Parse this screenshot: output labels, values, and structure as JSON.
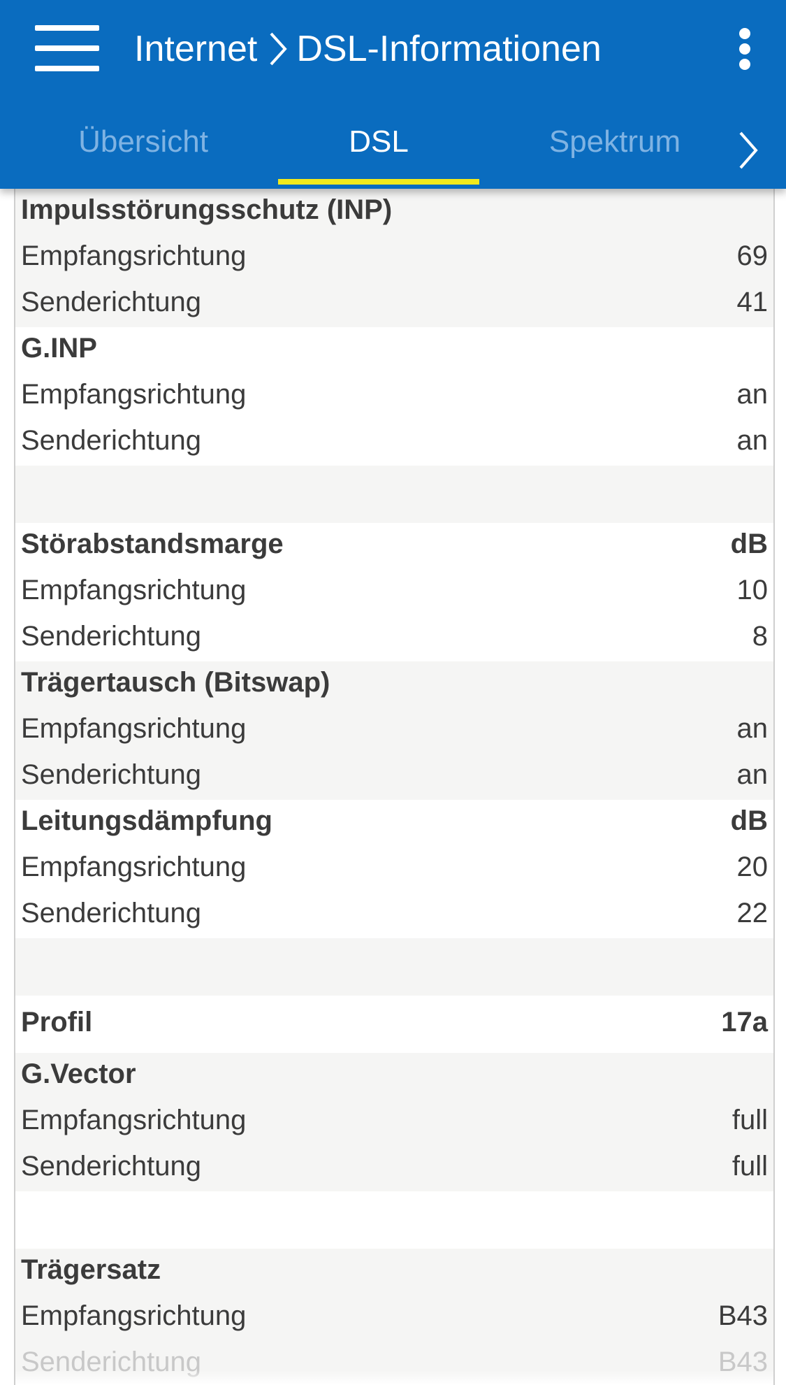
{
  "header": {
    "breadcrumb": {
      "parent": "Internet",
      "current": "DSL-Informationen"
    }
  },
  "tabs": [
    {
      "label": "Übersicht",
      "active": false
    },
    {
      "label": "DSL",
      "active": true
    },
    {
      "label": "Spektrum",
      "active": false
    }
  ],
  "colors": {
    "header_bg": "#0a6cbf",
    "tab_indicator": "#f2ea1c",
    "inactive_tab": "#7fb3e3"
  },
  "icons": {
    "menu": "hamburger-menu-icon",
    "more": "more-vert-icon",
    "next": "chevron-right-icon",
    "separator": "chevron-right-icon"
  },
  "sections": [
    {
      "title": "Impulsstörungsschutz (INP)",
      "unit": "",
      "rows": [
        {
          "label": "Empfangsrichtung",
          "value": "69"
        },
        {
          "label": "Senderichtung",
          "value": "41"
        }
      ]
    },
    {
      "title": "G.INP",
      "unit": "",
      "rows": [
        {
          "label": "Empfangsrichtung",
          "value": "an"
        },
        {
          "label": "Senderichtung",
          "value": "an"
        }
      ]
    },
    {
      "title": "Störabstandsmarge",
      "unit": "dB",
      "rows": [
        {
          "label": "Empfangsrichtung",
          "value": "10"
        },
        {
          "label": "Senderichtung",
          "value": "8"
        }
      ]
    },
    {
      "title": "Trägertausch (Bitswap)",
      "unit": "",
      "rows": [
        {
          "label": "Empfangsrichtung",
          "value": "an"
        },
        {
          "label": "Senderichtung",
          "value": "an"
        }
      ]
    },
    {
      "title": "Leitungsdämpfung",
      "unit": "dB",
      "rows": [
        {
          "label": "Empfangsrichtung",
          "value": "20"
        },
        {
          "label": "Senderichtung",
          "value": "22"
        }
      ]
    },
    {
      "title": "Profil",
      "value": "17a"
    },
    {
      "title": "G.Vector",
      "unit": "",
      "rows": [
        {
          "label": "Empfangsrichtung",
          "value": "full"
        },
        {
          "label": "Senderichtung",
          "value": "full"
        }
      ]
    },
    {
      "title": "Trägersatz",
      "unit": "",
      "rows": [
        {
          "label": "Empfangsrichtung",
          "value": "B43"
        },
        {
          "label": "Senderichtung",
          "value": "B43"
        }
      ]
    }
  ]
}
